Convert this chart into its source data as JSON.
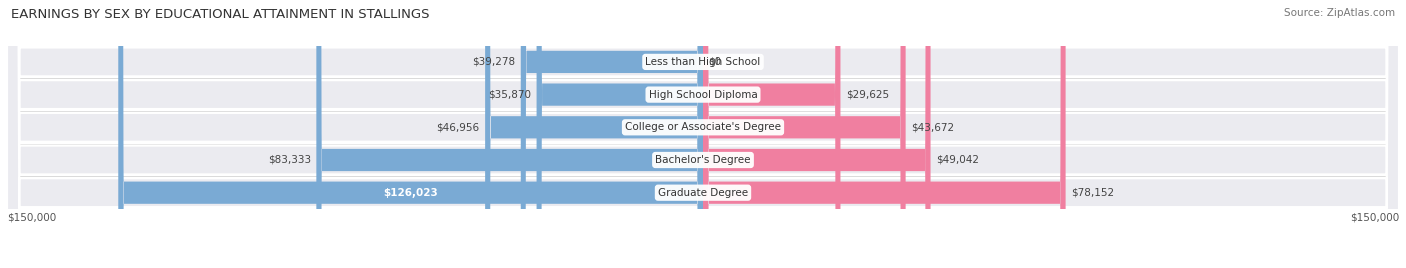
{
  "title": "EARNINGS BY SEX BY EDUCATIONAL ATTAINMENT IN STALLINGS",
  "source": "Source: ZipAtlas.com",
  "categories": [
    "Less than High School",
    "High School Diploma",
    "College or Associate's Degree",
    "Bachelor's Degree",
    "Graduate Degree"
  ],
  "male_values": [
    39278,
    35870,
    46956,
    83333,
    126023
  ],
  "female_values": [
    0,
    29625,
    43672,
    49042,
    78152
  ],
  "male_color": "#7aaad4",
  "female_color": "#f07fa0",
  "row_bg_color": "#ebebf0",
  "max_value": 150000,
  "xlabel_left": "$150,000",
  "xlabel_right": "$150,000",
  "title_fontsize": 9.5,
  "source_fontsize": 7.5,
  "label_fontsize": 7.5,
  "tick_fontsize": 7.5,
  "inside_label_threshold": 100000
}
